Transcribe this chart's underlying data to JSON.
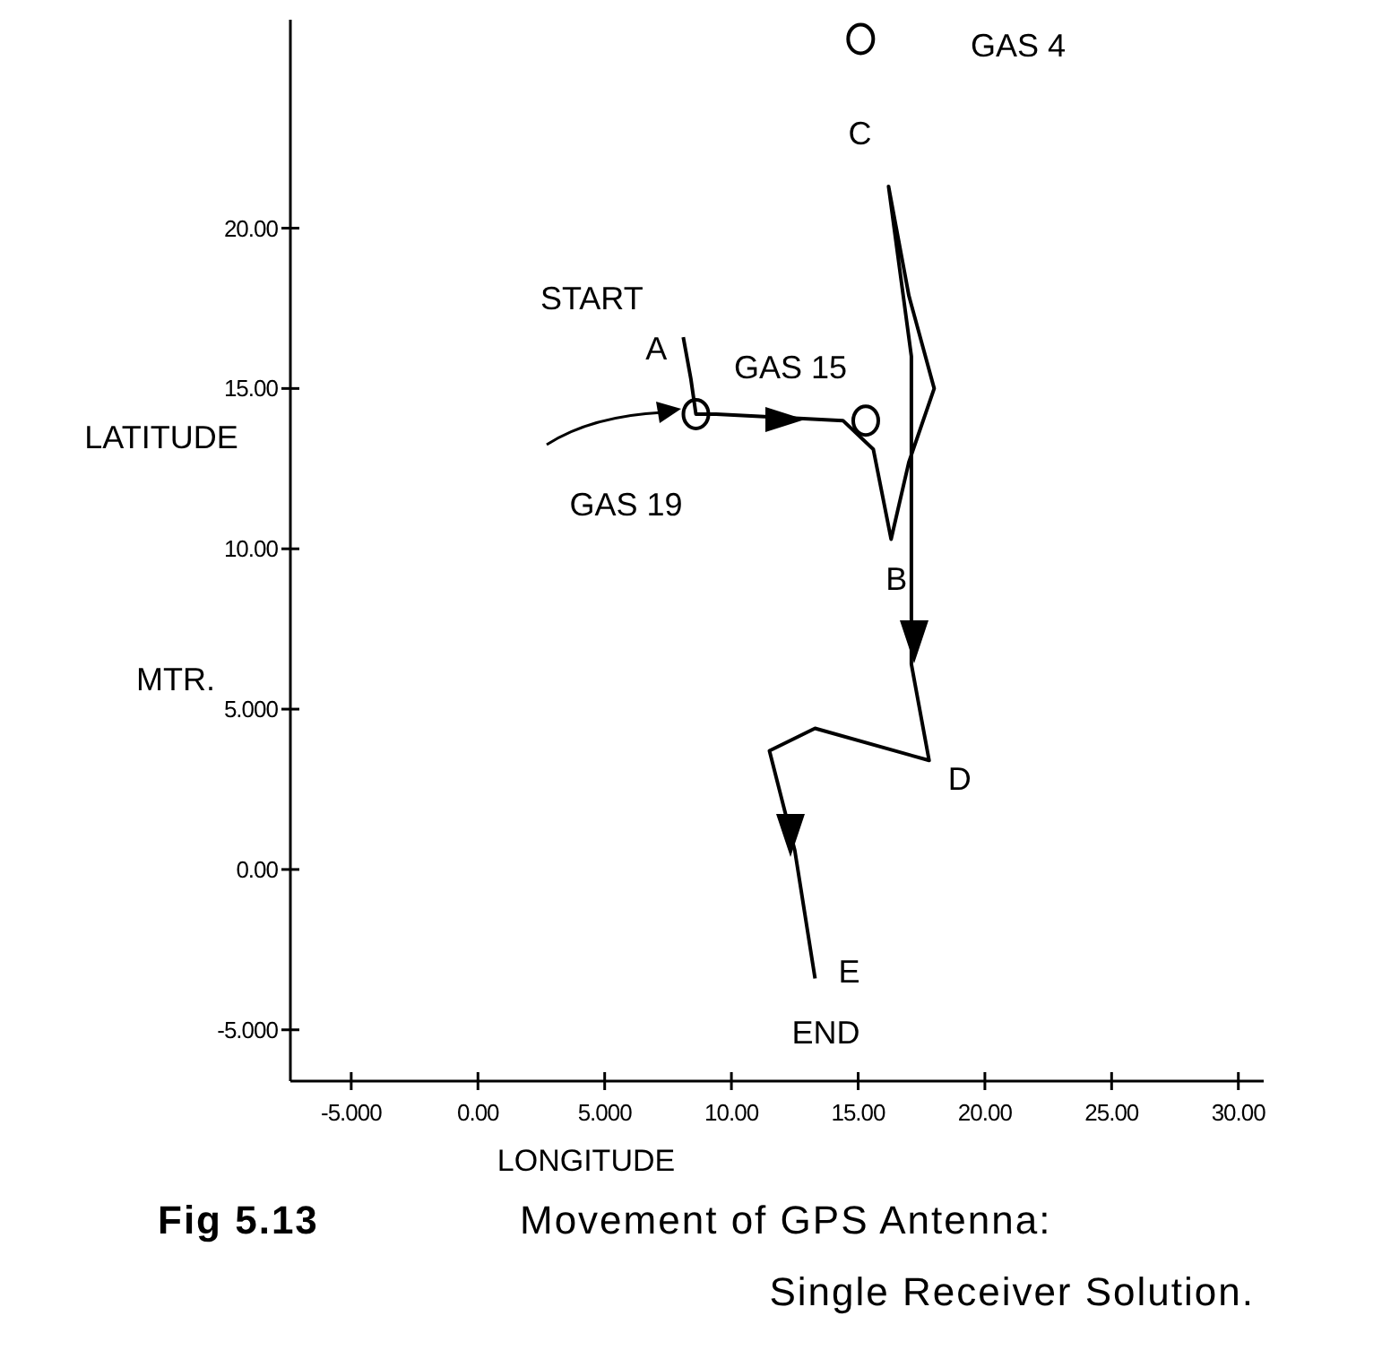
{
  "chart_data": {
    "type": "line",
    "title": "Fig 5.13",
    "subtitle": "Movement of GPS Antenna: Single Receiver Solution.",
    "xlabel": "LONGITUDE",
    "ylabel": "LATITUDE\nMTR.",
    "xlim": [
      -7.4,
      31
    ],
    "ylim": [
      -6.6,
      26.5
    ],
    "xticks": [
      {
        "value": -5,
        "label": "-5.000"
      },
      {
        "value": 0,
        "label": "0.00"
      },
      {
        "value": 5,
        "label": "5.000"
      },
      {
        "value": 10,
        "label": "10.00"
      },
      {
        "value": 15,
        "label": "15.00"
      },
      {
        "value": 20,
        "label": "20.00"
      },
      {
        "value": 25,
        "label": "25.00"
      },
      {
        "value": 30,
        "label": "30.00"
      }
    ],
    "yticks": [
      {
        "value": -5,
        "label": "-5.000"
      },
      {
        "value": 0,
        "label": "0.00"
      },
      {
        "value": 5,
        "label": "5.000"
      },
      {
        "value": 10,
        "label": "10.00"
      },
      {
        "value": 15,
        "label": "15.00"
      },
      {
        "value": 20,
        "label": "20.00"
      }
    ],
    "grid": false,
    "series": [
      {
        "color": "#000000",
        "marker": "none",
        "line_style": "solid",
        "x": [
          8.1,
          8.4,
          8.6,
          9.4,
          14.4,
          15.6,
          16.3,
          17.0,
          18.0,
          17.0,
          16.2,
          17.1,
          17.1,
          17.8,
          13.3,
          11.5,
          12.5,
          13.3
        ],
        "values": [
          16.6,
          15.3,
          14.2,
          14.2,
          14.0,
          13.1,
          10.3,
          12.7,
          15.0,
          17.9,
          21.3,
          16.0,
          6.4,
          3.4,
          4.4,
          3.7,
          0.6,
          -3.4
        ]
      },
      {
        "type": "scatter",
        "color": "#000000",
        "marker": "circle",
        "x": [
          15.1,
          15.3,
          8.6
        ],
        "values": [
          25.9,
          14.0,
          14.2
        ]
      }
    ],
    "annotations": [
      {
        "text": "START",
        "x": 8.1,
        "y": 16.6
      },
      {
        "text": "A",
        "x": 8.1,
        "y": 16.6
      },
      {
        "text": "GAS 15",
        "x": 15.3,
        "y": 14.0
      },
      {
        "text": "GAS 19",
        "x": 8.6,
        "y": 14.2
      },
      {
        "text": "B",
        "x": 16.3,
        "y": 10.3
      },
      {
        "text": "C",
        "x": 16.2,
        "y": 21.3
      },
      "GAS 4",
      {
        "text": "D",
        "x": 17.8,
        "y": 3.4
      },
      {
        "text": "E",
        "x": 13.3,
        "y": -3.4
      },
      {
        "text": "END",
        "x": 13.3,
        "y": -3.4
      }
    ]
  }
}
